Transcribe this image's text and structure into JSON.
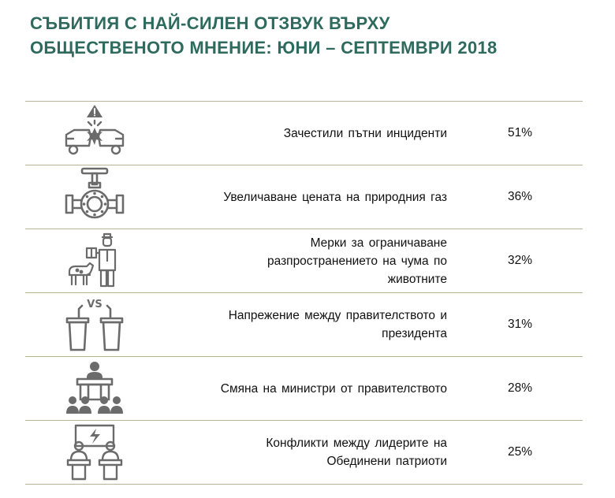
{
  "title": "СЪБИТИЯ С НАЙ-СИЛЕН ОТЗВУК ВЪРХУ\nОБЩЕСТВЕНОТО МНЕНИЕ: ЮНИ – СЕПТЕМВРИ 2018",
  "colors": {
    "title": "#2e6b5e",
    "icon": "#6b6b6b",
    "rule": "#b9b39a"
  },
  "rows": [
    {
      "icon": "car-crash-icon",
      "label": "Зачестили пътни инциденти",
      "value": "51%"
    },
    {
      "icon": "gas-valve-icon",
      "label": "Увеличаване цената на природния газ",
      "value": "36%"
    },
    {
      "icon": "livestock-inspector-icon",
      "label": "Мерки за ограничаване\nразпространението на чума по\nживотните",
      "value": "32%"
    },
    {
      "icon": "podiums-vs-icon",
      "label": "Напрежение между правителството и\nпрезидента",
      "value": "31%"
    },
    {
      "icon": "speaker-podium-icon",
      "label": "Смяна на министри от правителството",
      "value": "28%"
    },
    {
      "icon": "leaders-conflict-icon",
      "label": "Конфликти между лидерите на\nОбединени патриоти",
      "value": "25%"
    }
  ],
  "chart_data": {
    "type": "table",
    "title": "СЪБИТИЯ С НАЙ-СИЛЕН ОТЗВУК ВЪРХУ ОБЩЕСТВЕНОТО МНЕНИЕ: ЮНИ – СЕПТЕМВРИ 2018",
    "categories": [
      "Зачестили пътни инциденти",
      "Увеличаване цената на природния газ",
      "Мерки за ограничаване разпространението на чума по животните",
      "Напрежение между правителството и президента",
      "Смяна на министри от правителството",
      "Конфликти между лидерите на Обединени патриоти"
    ],
    "values": [
      51,
      36,
      32,
      31,
      28,
      25
    ],
    "unit": "%"
  }
}
